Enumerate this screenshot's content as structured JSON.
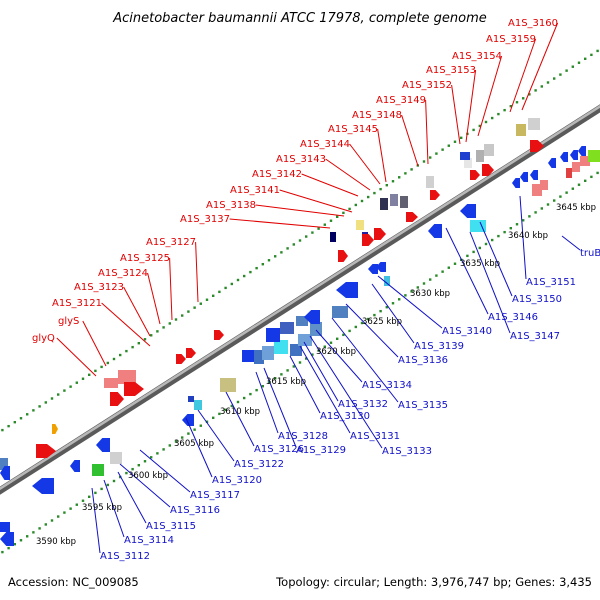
{
  "title": "Acinetobacter baumannii ATCC 17978, complete genome",
  "footer": {
    "accession": "Accession: NC_009085",
    "topology": "Topology: circular; Length: 3,976,747 bp; Genes: 3,435"
  },
  "colors": {
    "backbone": "#8c8c8c",
    "forward_label": "#e00000",
    "reverse_label": "#1010c8",
    "forward_gene": "#e81010",
    "reverse_gene": "#1438e6",
    "grid_dots": "#2a8a2a"
  },
  "kbp_ticks": [
    "3590 kbp",
    "3595 kbp",
    "3600 kbp",
    "3605 kbp",
    "3610 kbp",
    "3615 kbp",
    "3620 kbp",
    "3625 kbp",
    "3630 kbp",
    "3635 kbp",
    "3640 kbp",
    "3645 kbp"
  ],
  "forward_labels": [
    "glyQ",
    "glyS",
    "A1S_3121",
    "A1S_3123",
    "A1S_3124",
    "A1S_3125",
    "A1S_3127",
    "A1S_3137",
    "A1S_3138",
    "A1S_3141",
    "A1S_3142",
    "A1S_3143",
    "A1S_3144",
    "A1S_3145",
    "A1S_3148",
    "A1S_3149",
    "A1S_3152",
    "A1S_3153",
    "A1S_3154",
    "A1S_3159",
    "A1S_3160"
  ],
  "reverse_labels": [
    "A1S_3112",
    "A1S_3114",
    "A1S_3115",
    "A1S_3116",
    "A1S_3117",
    "A1S_3120",
    "A1S_3122",
    "A1S_3126",
    "A1S_3128",
    "A1S_3129",
    "A1S_3130",
    "A1S_3131",
    "A1S_3132",
    "A1S_3133",
    "A1S_3134",
    "A1S_3135",
    "A1S_3136",
    "A1S_3139",
    "A1S_3140",
    "A1S_3146",
    "A1S_3147",
    "A1S_3150",
    "A1S_3151",
    "truB"
  ]
}
